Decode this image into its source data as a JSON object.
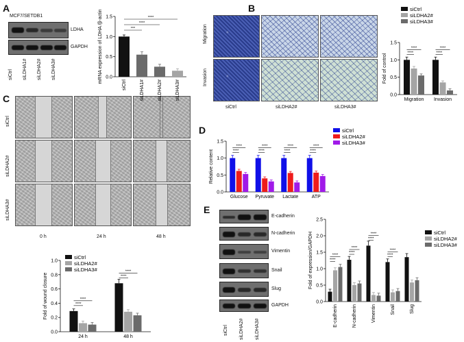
{
  "panels": {
    "a": "A",
    "b": "B",
    "c": "C",
    "d": "D",
    "e": "E"
  },
  "panel_a": {
    "blot_title": "MCF7/SETDB1",
    "blot_rows": [
      "LDHA",
      "GAPDH"
    ],
    "lanes": [
      "siCtrl",
      "siLDHA1#",
      "siLDHA2#",
      "siLDHA3#"
    ]
  },
  "panel_b": {
    "row_labels": [
      "Migration",
      "Invasion"
    ],
    "col_labels": [
      "siCtrl",
      "siLDHA2#",
      "siLDHA3#"
    ]
  },
  "panel_c": {
    "row_labels": [
      "siCtrl",
      "siLDHA2#",
      "siLDHA3#"
    ],
    "col_labels": [
      "0 h",
      "24 h",
      "48 h"
    ]
  },
  "panel_e": {
    "blot_rows": [
      "E-cadherin",
      "N-cadherin",
      "Vimentin",
      "Snail",
      "Slug",
      "GAPDH"
    ],
    "lanes": [
      "siCtrl",
      "siLDHA2#",
      "siLDHA3#"
    ]
  },
  "colors": {
    "black": "#111111",
    "gray": "#a5a5a5",
    "dark_gray": "#6b6b6b",
    "blue": "#1010e8",
    "red": "#ee1c1c",
    "purple": "#a01ae8"
  },
  "chart_data": [
    {
      "id": "A",
      "type": "bar",
      "ylabel": "mRNA expression of LDHA /β-actin",
      "categories": [
        "siCtrl",
        "siLDHA1#",
        "siLDHA2#",
        "siLDHA3#"
      ],
      "values": [
        1.0,
        0.55,
        0.25,
        0.15
      ],
      "errors": [
        0.04,
        0.07,
        0.06,
        0.05
      ],
      "ylim": [
        0,
        1.5
      ],
      "yticks": [
        "0.0",
        "0.5",
        "1.0",
        "1.5"
      ],
      "significance": [
        "***",
        "****",
        "****"
      ]
    },
    {
      "id": "B",
      "type": "bar",
      "ylabel": "Fold of control",
      "categories": [
        "Migration",
        "Invasion"
      ],
      "series": [
        {
          "name": "siCtrl",
          "values": [
            1.0,
            1.0
          ]
        },
        {
          "name": "siLDHA2#",
          "values": [
            0.75,
            0.35
          ]
        },
        {
          "name": "siLDHA3#",
          "values": [
            0.55,
            0.12
          ]
        }
      ],
      "ylim": [
        0,
        1.5
      ],
      "yticks": [
        "0.0",
        "0.5",
        "1.0",
        "1.5"
      ],
      "significance": [
        "****",
        "****",
        "****",
        "****"
      ]
    },
    {
      "id": "C",
      "type": "bar",
      "ylabel": "Fold of wound closure",
      "categories": [
        "24 h",
        "48 h"
      ],
      "series": [
        {
          "name": "siCtrl",
          "values": [
            0.29,
            0.68
          ]
        },
        {
          "name": "siLDHA2#",
          "values": [
            0.12,
            0.28
          ]
        },
        {
          "name": "siLDHA3#",
          "values": [
            0.1,
            0.23
          ]
        }
      ],
      "ylim": [
        0,
        1.0
      ],
      "yticks": [
        "0.0",
        "0.2",
        "0.4",
        "0.6",
        "0.8",
        "1.0"
      ],
      "significance": [
        "****",
        "****",
        "****",
        "****"
      ]
    },
    {
      "id": "D",
      "type": "bar",
      "ylabel": "Relative content",
      "categories": [
        "Glucose",
        "Pyruvate",
        "Lactate",
        "ATP"
      ],
      "series": [
        {
          "name": "siCtrl",
          "values": [
            1.0,
            1.0,
            1.0,
            1.0
          ]
        },
        {
          "name": "siLDHA2#",
          "values": [
            0.62,
            0.4,
            0.56,
            0.57
          ]
        },
        {
          "name": "siLDHA3#",
          "values": [
            0.53,
            0.31,
            0.28,
            0.47
          ]
        }
      ],
      "ylim": [
        0,
        1.5
      ],
      "yticks": [
        "0.0",
        "0.5",
        "1.0",
        "1.5"
      ],
      "significance": [
        "****",
        "****",
        "****",
        "****"
      ]
    },
    {
      "id": "E",
      "type": "bar",
      "ylabel": "Fold of expression/GAPDH",
      "categories": [
        "E-cadherin",
        "N-cadherin",
        "Vimentin",
        "Snail",
        "Slug"
      ],
      "series": [
        {
          "name": "siCtrl",
          "values": [
            0.3,
            1.27,
            1.7,
            1.2,
            1.35
          ]
        },
        {
          "name": "siLDHA2#",
          "values": [
            0.95,
            0.5,
            0.2,
            0.28,
            0.58
          ]
        },
        {
          "name": "siLDHA3#",
          "values": [
            1.05,
            0.55,
            0.18,
            0.32,
            0.65
          ]
        }
      ],
      "ylim": [
        0,
        2.5
      ],
      "yticks": [
        "0.0",
        "0.5",
        "1.0",
        "1.5",
        "2.0",
        "2.5"
      ],
      "significance": [
        "****",
        "****",
        "****",
        "****"
      ]
    }
  ]
}
